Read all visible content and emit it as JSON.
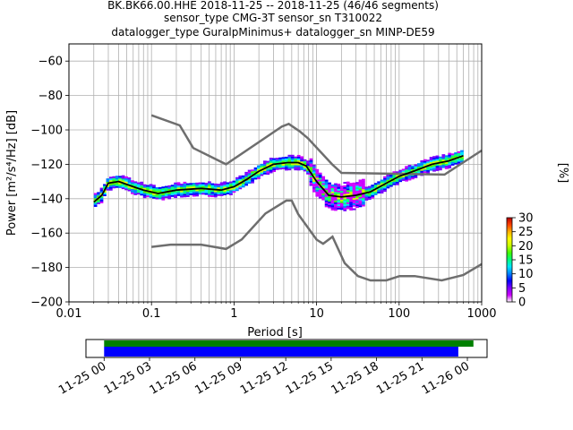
{
  "title": {
    "line1": "BK.BK66.00.HHE   2018-11-25 -- 2018-11-25  (46/46 segments)",
    "line2": "sensor_type CMG-3T sensor_sn T310022",
    "line3": "datalogger_type GuralpMinimus+ datalogger_sn MINP-DE59"
  },
  "chart_data": [
    {
      "type": "heatmap",
      "title": "",
      "xlabel": "Period [s]",
      "ylabel": "Power [m²/s⁴/Hz] [dB]",
      "xscale": "log",
      "xlim": [
        0.01,
        1000
      ],
      "ylim": [
        -200,
        -50
      ],
      "grid": true,
      "x_ticks": [
        {
          "value": 0.01,
          "label": "0.01"
        },
        {
          "value": 0.1,
          "label": "0.1"
        },
        {
          "value": 1,
          "label": "1"
        },
        {
          "value": 10,
          "label": "10"
        },
        {
          "value": 100,
          "label": "100"
        },
        {
          "value": 1000,
          "label": "1000"
        }
      ],
      "y_ticks": [
        {
          "value": -60,
          "label": "−60"
        },
        {
          "value": -80,
          "label": "−80"
        },
        {
          "value": -100,
          "label": "−100"
        },
        {
          "value": -120,
          "label": "−120"
        },
        {
          "value": -140,
          "label": "−140"
        },
        {
          "value": -160,
          "label": "−160"
        },
        {
          "value": -180,
          "label": "−180"
        },
        {
          "value": -200,
          "label": "−200"
        }
      ],
      "noise_model_color": "#6e6e6e",
      "high_noise_model": {
        "x": [
          0.1,
          0.22,
          0.32,
          0.8,
          3.8,
          4.6,
          6.3,
          7.9,
          15.4,
          20,
          354.8,
          1000
        ],
        "y": [
          -91.5,
          -97.4,
          -110.5,
          -120,
          -98,
          -96.5,
          -101,
          -105,
          -120,
          -125,
          -126,
          -112
        ]
      },
      "low_noise_model": {
        "x": [
          0.1,
          0.17,
          0.4,
          0.8,
          1.24,
          2.4,
          4.3,
          5,
          6,
          10,
          12,
          15.6,
          21.9,
          31.6,
          45,
          70,
          101,
          154,
          328,
          600,
          1000
        ],
        "y": [
          -168,
          -166.7,
          -166.7,
          -169.2,
          -163.7,
          -148.6,
          -141.1,
          -141.1,
          -149,
          -163.8,
          -166.2,
          -162.1,
          -177.5,
          -185,
          -187.5,
          -187.5,
          -185,
          -185,
          -187.5,
          -184.4,
          -178
        ]
      },
      "mean_curve": {
        "color": "#000000",
        "x": [
          0.02,
          0.025,
          0.03,
          0.04,
          0.06,
          0.08,
          0.12,
          0.2,
          0.4,
          0.7,
          1,
          1.4,
          2,
          3,
          4.5,
          6,
          7.5,
          10,
          14,
          20,
          30,
          45,
          70,
          100,
          150,
          250,
          400,
          600
        ],
        "y": [
          -142,
          -138,
          -131,
          -130,
          -133,
          -135,
          -137,
          -135,
          -134,
          -135,
          -133,
          -129,
          -124,
          -120,
          -119,
          -119,
          -121,
          -130,
          -138,
          -139,
          -138,
          -136,
          -131,
          -127,
          -124,
          -120,
          -118,
          -115
        ]
      },
      "colorbar": {
        "label": "[%]",
        "min": 0,
        "max": 30,
        "ticks": [
          {
            "value": 0,
            "label": "0"
          },
          {
            "value": 5,
            "label": "5"
          },
          {
            "value": 10,
            "label": "10"
          },
          {
            "value": 15,
            "label": "15"
          },
          {
            "value": 20,
            "label": "20"
          },
          {
            "value": 25,
            "label": "25"
          },
          {
            "value": 30,
            "label": "30"
          }
        ],
        "colors": [
          "#ffffff",
          "#cc00ff",
          "#7a00ff",
          "#0000ff",
          "#0080ff",
          "#00e5ff",
          "#00ff80",
          "#40ff00",
          "#c8ff00",
          "#ffff00",
          "#ffb000",
          "#ff4000",
          "#b40000"
        ]
      }
    },
    {
      "type": "timeline",
      "tick_labels": [
        "11-25 00",
        "11-25 03",
        "11-25 06",
        "11-25 09",
        "11-25 12",
        "11-25 15",
        "11-25 18",
        "11-25 21",
        "11-26 00"
      ],
      "tick_hours": [
        0,
        3,
        6,
        9,
        12,
        15,
        18,
        21,
        24
      ],
      "xlim_hours": [
        -1.2,
        25.3
      ],
      "data_bar": {
        "color": "#008000",
        "start_hour": 0,
        "end_hour": 24.4
      },
      "psd_bar": {
        "color": "#0000ff",
        "start_hour": 0,
        "end_hour": 23.4
      }
    }
  ]
}
